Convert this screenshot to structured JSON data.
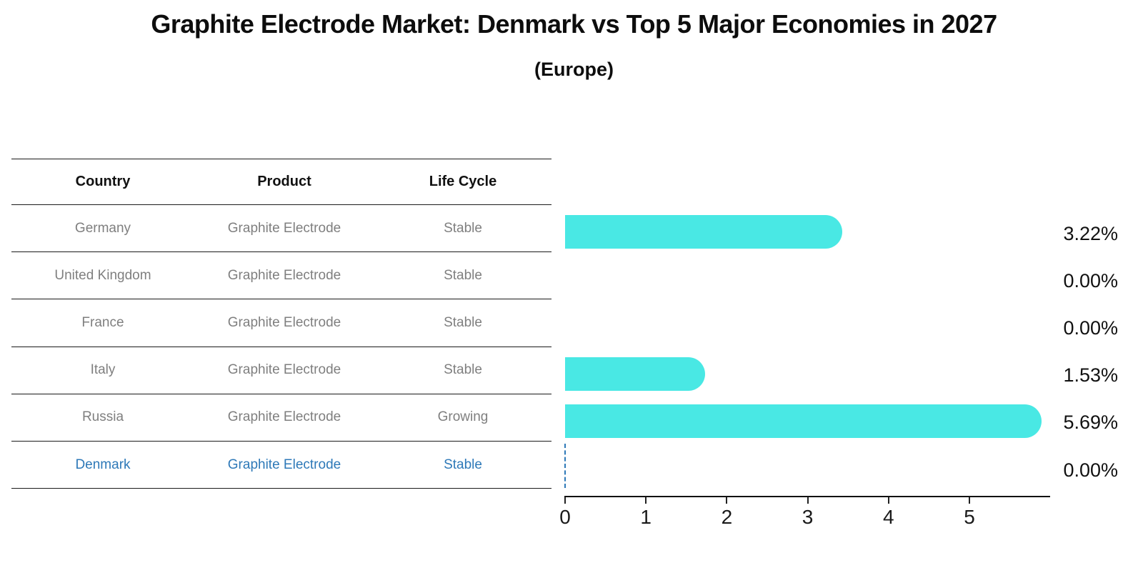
{
  "title": "Graphite Electrode Market: Denmark vs Top 5 Major Economies in 2027",
  "subtitle": "(Europe)",
  "table": {
    "headers": [
      "Country",
      "Product",
      "Life Cycle"
    ],
    "rows": [
      {
        "country": "Germany",
        "product": "Graphite Electrode",
        "life_cycle": "Stable",
        "highlight": false
      },
      {
        "country": "United Kingdom",
        "product": "Graphite Electrode",
        "life_cycle": "Stable",
        "highlight": false
      },
      {
        "country": "France",
        "product": "Graphite Electrode",
        "life_cycle": "Stable",
        "highlight": false
      },
      {
        "country": "Italy",
        "product": "Graphite Electrode",
        "life_cycle": "Stable",
        "highlight": false
      },
      {
        "country": "Russia",
        "product": "Graphite Electrode",
        "life_cycle": "Growing",
        "highlight": false
      },
      {
        "country": "Denmark",
        "product": "Graphite Electrode",
        "life_cycle": "Stable",
        "highlight": true
      }
    ]
  },
  "chart_data": {
    "type": "bar",
    "orientation": "horizontal",
    "title": "Graphite Electrode Market: Denmark vs Top 5 Major Economies in 2027",
    "subtitle": "(Europe)",
    "categories": [
      "Germany",
      "United Kingdom",
      "France",
      "Italy",
      "Russia",
      "Denmark"
    ],
    "values": [
      3.22,
      0.0,
      0.0,
      1.53,
      5.69,
      0.0
    ],
    "value_labels": [
      "3.22%",
      "0.00%",
      "0.00%",
      "1.53%",
      "5.69%",
      "0.00%"
    ],
    "xlabel": "",
    "ylabel": "",
    "xlim": [
      0,
      6
    ],
    "x_ticks": [
      "0",
      "1",
      "2",
      "3",
      "4",
      "5"
    ],
    "grid": false,
    "legend": false,
    "bar_color": "#49E8E4",
    "highlight_color": "#2E79B8",
    "highlight_index": 5,
    "highlight_marker": "dashed-zero-line"
  }
}
